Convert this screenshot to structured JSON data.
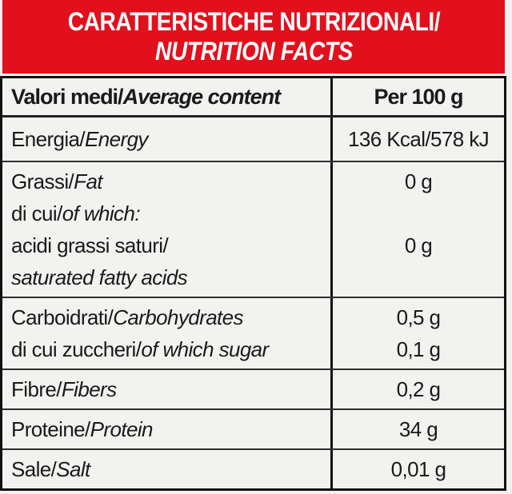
{
  "colors": {
    "banner_red": "#e2101d",
    "table_background": "#f2f2f0",
    "border_black": "#111111",
    "text": "#1a1a1a",
    "banner_text": "#ffffff"
  },
  "banner": {
    "line1": "CARATTERISTICHE NUTRIZIONALI/",
    "line2": "NUTRITION FACTS"
  },
  "table": {
    "header": {
      "label_normal": "Valori medi/",
      "label_italic": "Average content",
      "value": "Per 100 g"
    },
    "rows": [
      {
        "name": "energy",
        "lines": [
          {
            "normal": "Energia/",
            "italic": "Energy",
            "value": "136 Kcal/578 kJ"
          }
        ]
      },
      {
        "name": "fat",
        "lines": [
          {
            "normal": "Grassi/",
            "italic": "Fat",
            "value": "0 g"
          },
          {
            "normal": "di cui/",
            "italic": "of which:",
            "value": ""
          },
          {
            "normal": "acidi grassi saturi/",
            "italic": "",
            "value": "0 g"
          },
          {
            "normal": "",
            "italic": "saturated fatty acids",
            "value": ""
          }
        ]
      },
      {
        "name": "carbohydrates",
        "lines": [
          {
            "normal": "Carboidrati/",
            "italic": "Carbohydrates",
            "value": "0,5 g"
          },
          {
            "normal": "di cui zuccheri/",
            "italic": "of which sugar",
            "value": "0,1 g"
          }
        ]
      },
      {
        "name": "fibers",
        "lines": [
          {
            "normal": "Fibre/",
            "italic": "Fibers",
            "value": "0,2 g"
          }
        ]
      },
      {
        "name": "protein",
        "lines": [
          {
            "normal": "Proteine/",
            "italic": "Protein",
            "value": "34 g"
          }
        ]
      },
      {
        "name": "salt",
        "lines": [
          {
            "normal": "Sale/",
            "italic": "Salt",
            "value": "0,01 g"
          }
        ]
      }
    ]
  }
}
